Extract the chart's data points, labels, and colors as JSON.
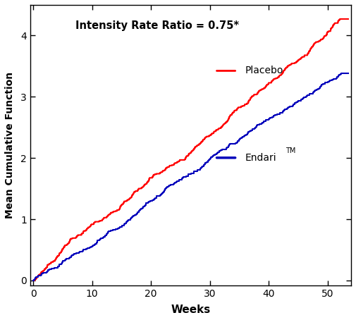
{
  "annotation": "Intensity Rate Ratio = 0.75*",
  "xlabel": "Weeks",
  "ylabel": "Mean Cumulative Function",
  "xlim": [
    -0.5,
    54
  ],
  "ylim": [
    -0.08,
    4.5
  ],
  "xticks": [
    0,
    10,
    20,
    30,
    40,
    50
  ],
  "yticks": [
    0,
    1,
    2,
    3,
    4
  ],
  "placebo_color": "#FF0000",
  "endari_color": "#0000BB",
  "placebo_label": "Placebo",
  "endari_label": "Endari",
  "tm_super": "TM",
  "background_color": "#FFFFFF",
  "figsize": [
    5.05,
    4.54
  ],
  "dpi": 100,
  "placebo_final_y": 4.27,
  "endari_final_y": 3.38,
  "x_end": 52.5
}
